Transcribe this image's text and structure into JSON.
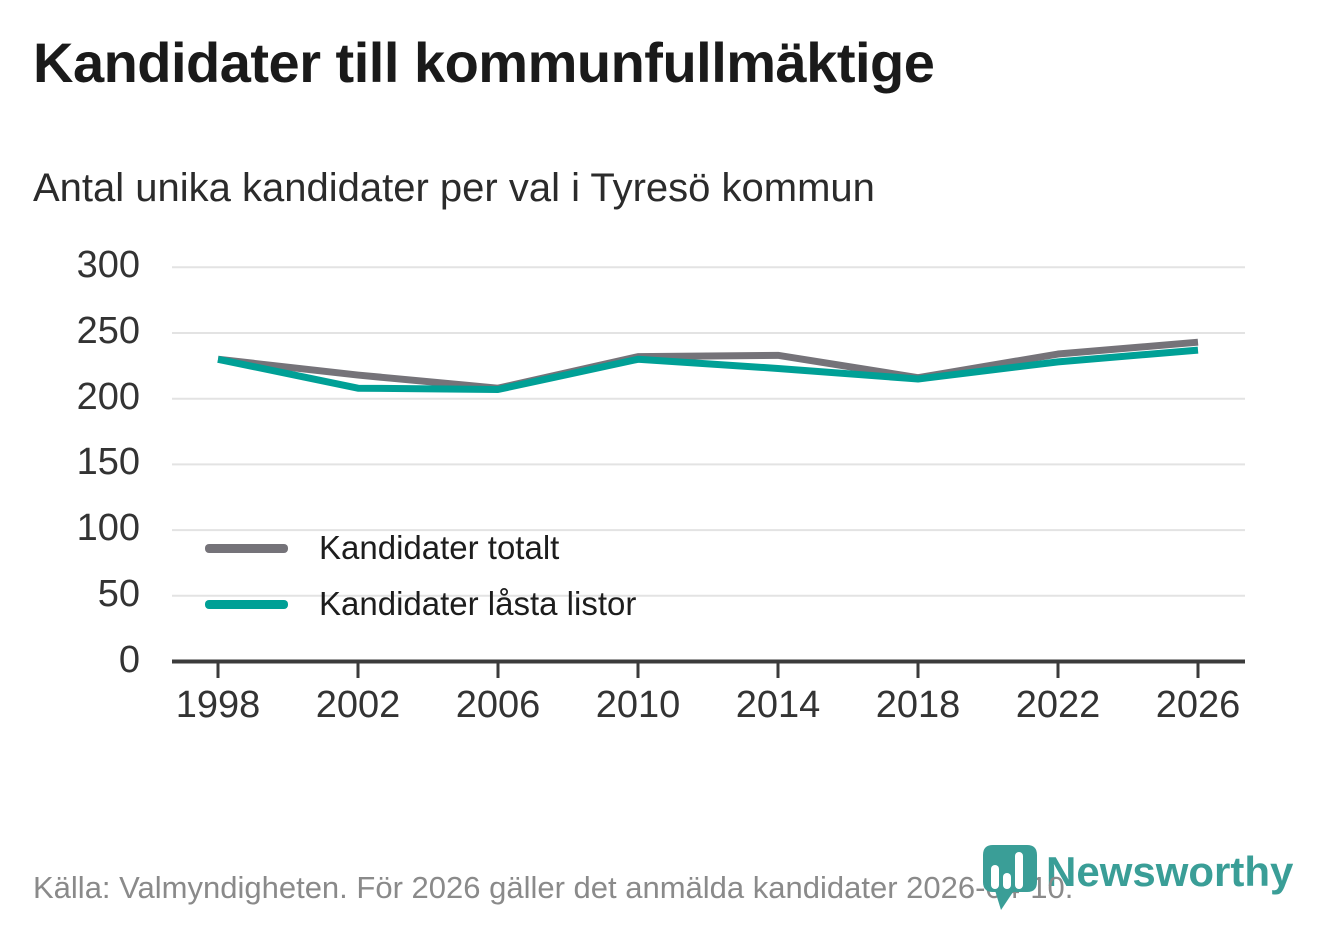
{
  "header": {
    "title": "Kandidater till kommunfullmäktige",
    "subtitle": "Antal unika kandidater per val i Tyresö kommun"
  },
  "chart_data": {
    "type": "line",
    "title": "Kandidater till kommunfullmäktige",
    "subtitle": "Antal unika kandidater per val i Tyresö kommun",
    "x": [
      1998,
      2002,
      2006,
      2010,
      2014,
      2018,
      2022,
      2026
    ],
    "series": [
      {
        "name": "Kandidater totalt",
        "color": "#757379",
        "values": [
          230,
          218,
          208,
          232,
          233,
          216,
          234,
          243
        ]
      },
      {
        "name": "Kandidater låsta listor",
        "color": "#00A096",
        "values": [
          230,
          208,
          207,
          230,
          223,
          215,
          228,
          237
        ]
      }
    ],
    "ylim": [
      0,
      300
    ],
    "yticks": [
      0,
      50,
      100,
      150,
      200,
      250,
      300
    ],
    "grid": "horizontal",
    "legend_position": "inside-left-middle"
  },
  "footer": {
    "source": "Källa: Valmyndigheten. För 2026 gäller det anmälda kandidater 2026-04-10."
  },
  "logo": {
    "wordmark": "Newsworthy"
  },
  "colors": {
    "brand_teal": "#00A096",
    "wordmark_teal": "#3A9E97",
    "line_gray": "#757379",
    "grid": "#E3E3E3",
    "axis": "#3B3B3B",
    "title_text": "#1A1A1A",
    "muted_text": "#8A8A8A"
  }
}
